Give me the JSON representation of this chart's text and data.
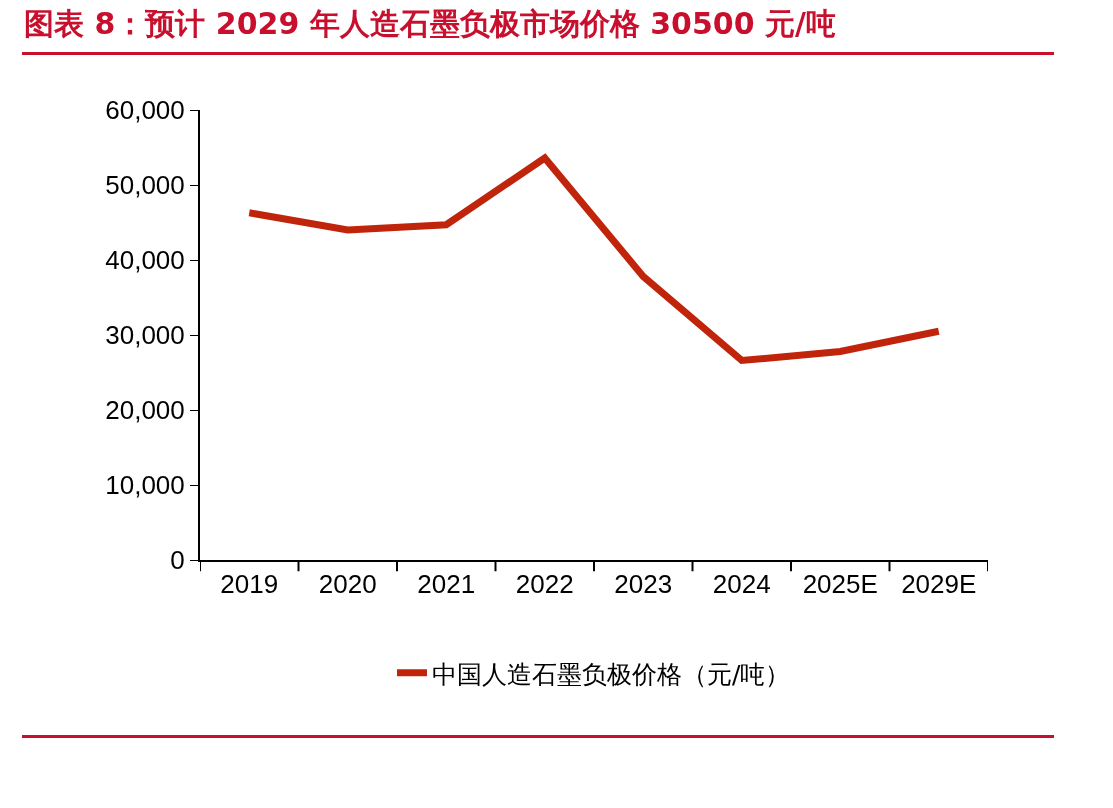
{
  "chart_data": {
    "type": "line",
    "title": "图表 8：预计 2029 年人造石墨负极市场价格 30500 元/吨",
    "categories": [
      "2019",
      "2020",
      "2021",
      "2022",
      "2023",
      "2024",
      "2025E",
      "2029E"
    ],
    "series": [
      {
        "name": "中国人造石墨负极价格（元/吨）",
        "color": "#c0250c",
        "values": [
          46300,
          44000,
          44700,
          53600,
          37800,
          26600,
          27800,
          30500
        ]
      }
    ],
    "ylim": [
      0,
      60000
    ],
    "yticks": [
      {
        "value": 0,
        "label": "0"
      },
      {
        "value": 10000,
        "label": "10,000"
      },
      {
        "value": 20000,
        "label": "20,000"
      },
      {
        "value": 30000,
        "label": "30,000"
      },
      {
        "value": 40000,
        "label": "40,000"
      },
      {
        "value": 50000,
        "label": "50,000"
      },
      {
        "value": 60000,
        "label": "60,000"
      }
    ],
    "grid": false,
    "legend": "bottom",
    "marker": "none",
    "line_style": "solid"
  }
}
